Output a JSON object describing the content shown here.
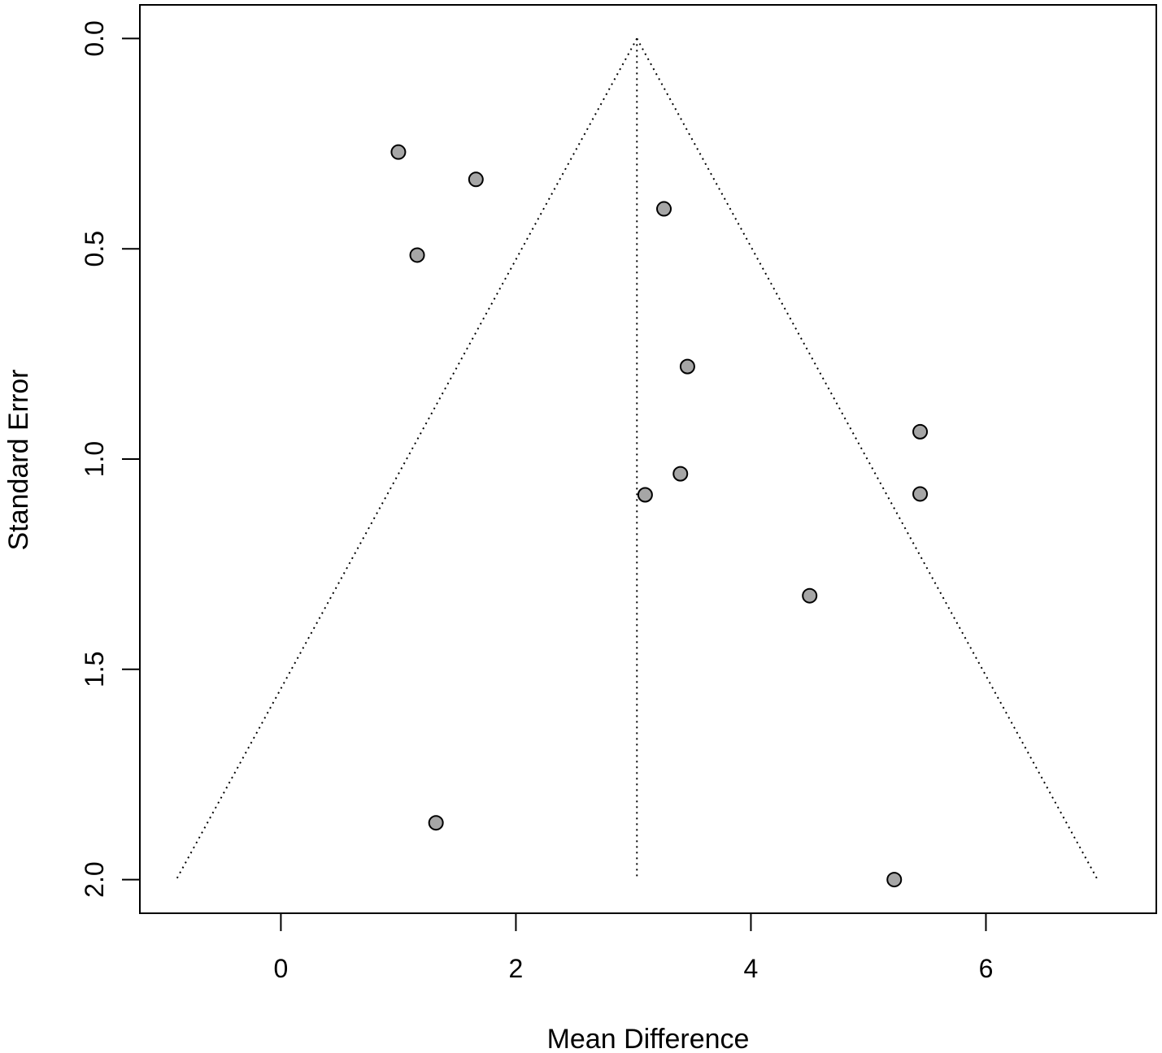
{
  "chart_data": {
    "type": "scatter",
    "title": "",
    "xlabel": "Mean Difference",
    "ylabel": "Standard Error",
    "xlim": [
      -1.2,
      7.45
    ],
    "ylim": [
      -0.08,
      2.08
    ],
    "y_reversed": true,
    "x_ticks": [
      0,
      2,
      4,
      6
    ],
    "x_tick_labels": [
      "0",
      "2",
      "4",
      "6"
    ],
    "y_ticks": [
      0,
      0.5,
      1,
      1.5,
      2
    ],
    "y_tick_labels": [
      "0.0",
      "0.5",
      "1.0",
      "1.5",
      "2.0"
    ],
    "grid": false,
    "pooled_estimate": 3.03,
    "funnel": {
      "apex": [
        3.03,
        0
      ],
      "bottom_left": [
        -0.89,
        2.0
      ],
      "bottom_right": [
        6.95,
        2.0
      ],
      "line_style": "dotted"
    },
    "marker_fill": "#a6a6a6",
    "marker_stroke": "#000000",
    "points": [
      {
        "x": 1.0,
        "y": 0.27
      },
      {
        "x": 1.66,
        "y": 0.335
      },
      {
        "x": 3.26,
        "y": 0.405
      },
      {
        "x": 1.16,
        "y": 0.515
      },
      {
        "x": 3.46,
        "y": 0.78
      },
      {
        "x": 5.44,
        "y": 0.935
      },
      {
        "x": 3.4,
        "y": 1.035
      },
      {
        "x": 3.1,
        "y": 1.085
      },
      {
        "x": 5.44,
        "y": 1.083
      },
      {
        "x": 4.5,
        "y": 1.325
      },
      {
        "x": 1.32,
        "y": 1.865
      },
      {
        "x": 5.22,
        "y": 2.0
      }
    ]
  }
}
